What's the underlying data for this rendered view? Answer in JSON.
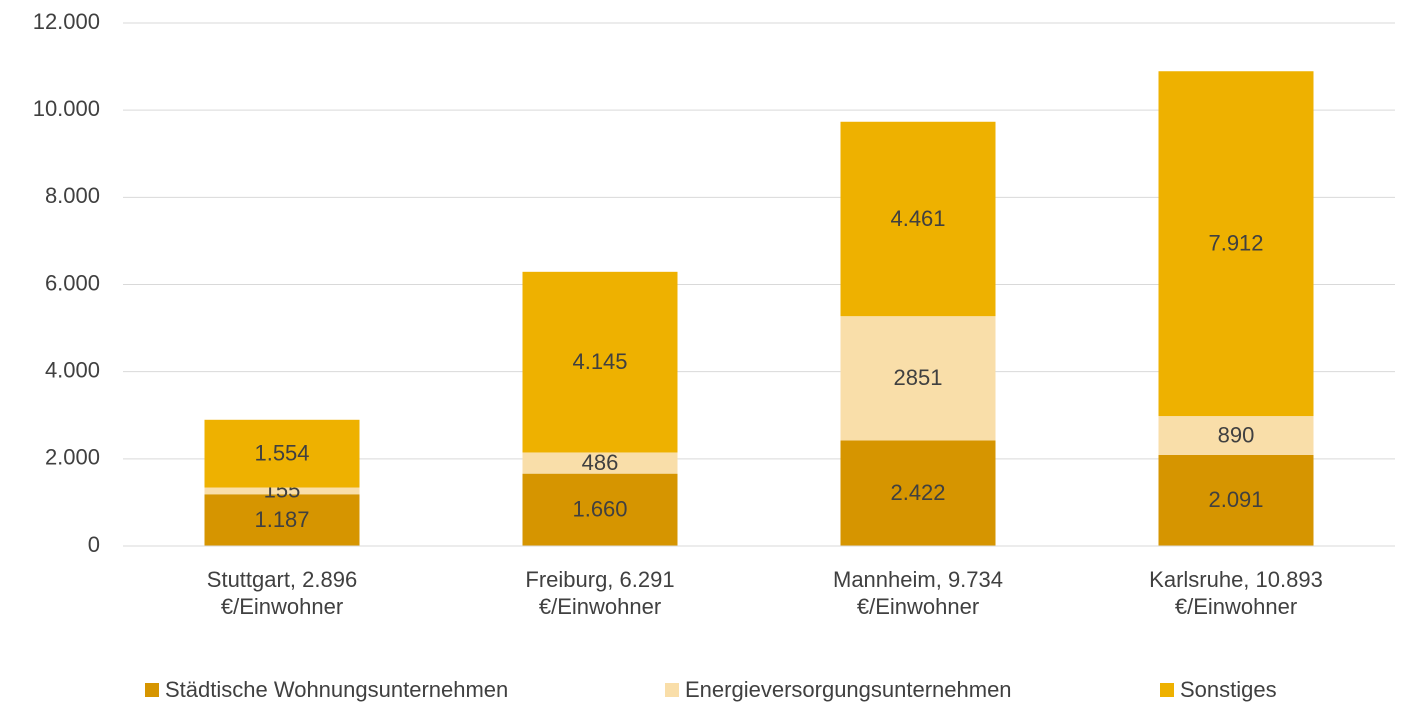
{
  "chart_data": {
    "type": "stacked_bar",
    "categories": [
      "Stuttgart, 2.896 €/Einwohner",
      "Freiburg, 6.291 €/Einwohner",
      "Mannheim, 9.734 €/Einwohner",
      "Karlsruhe, 10.893 €/Einwohner"
    ],
    "series": [
      {
        "name": "Städtische Wohnungsunternehmen",
        "color": "#d69500",
        "values": [
          1187,
          1660,
          2422,
          2091
        ],
        "value_labels": [
          "1.187",
          "1.660",
          "2.422",
          "2.091"
        ]
      },
      {
        "name": "Energieversorgungsunternehmen",
        "color": "#f9dea9",
        "values": [
          155,
          486,
          2851,
          890
        ]
      },
      {
        "name": "Sonstiges",
        "color": "#eeb100",
        "values": [
          1554,
          4145,
          4461,
          7912
        ],
        "value_labels": [
          "1.554",
          "4.145",
          "4.461",
          "7.912"
        ]
      }
    ],
    "ylim": [
      0,
      12000
    ],
    "yticks": [
      0,
      {
        "value": 2000,
        "label": "2.000"
      },
      {
        "value": 4000,
        "label": "4.000"
      },
      {
        "value": 6000,
        "label": "6.000"
      },
      {
        "value": 8000,
        "label": "8.000"
      },
      {
        "value": 10000,
        "label": "10.000"
      },
      {
        "value": 12000,
        "label": "12.000"
      }
    ],
    "grid": true,
    "legend": "bottom"
  }
}
